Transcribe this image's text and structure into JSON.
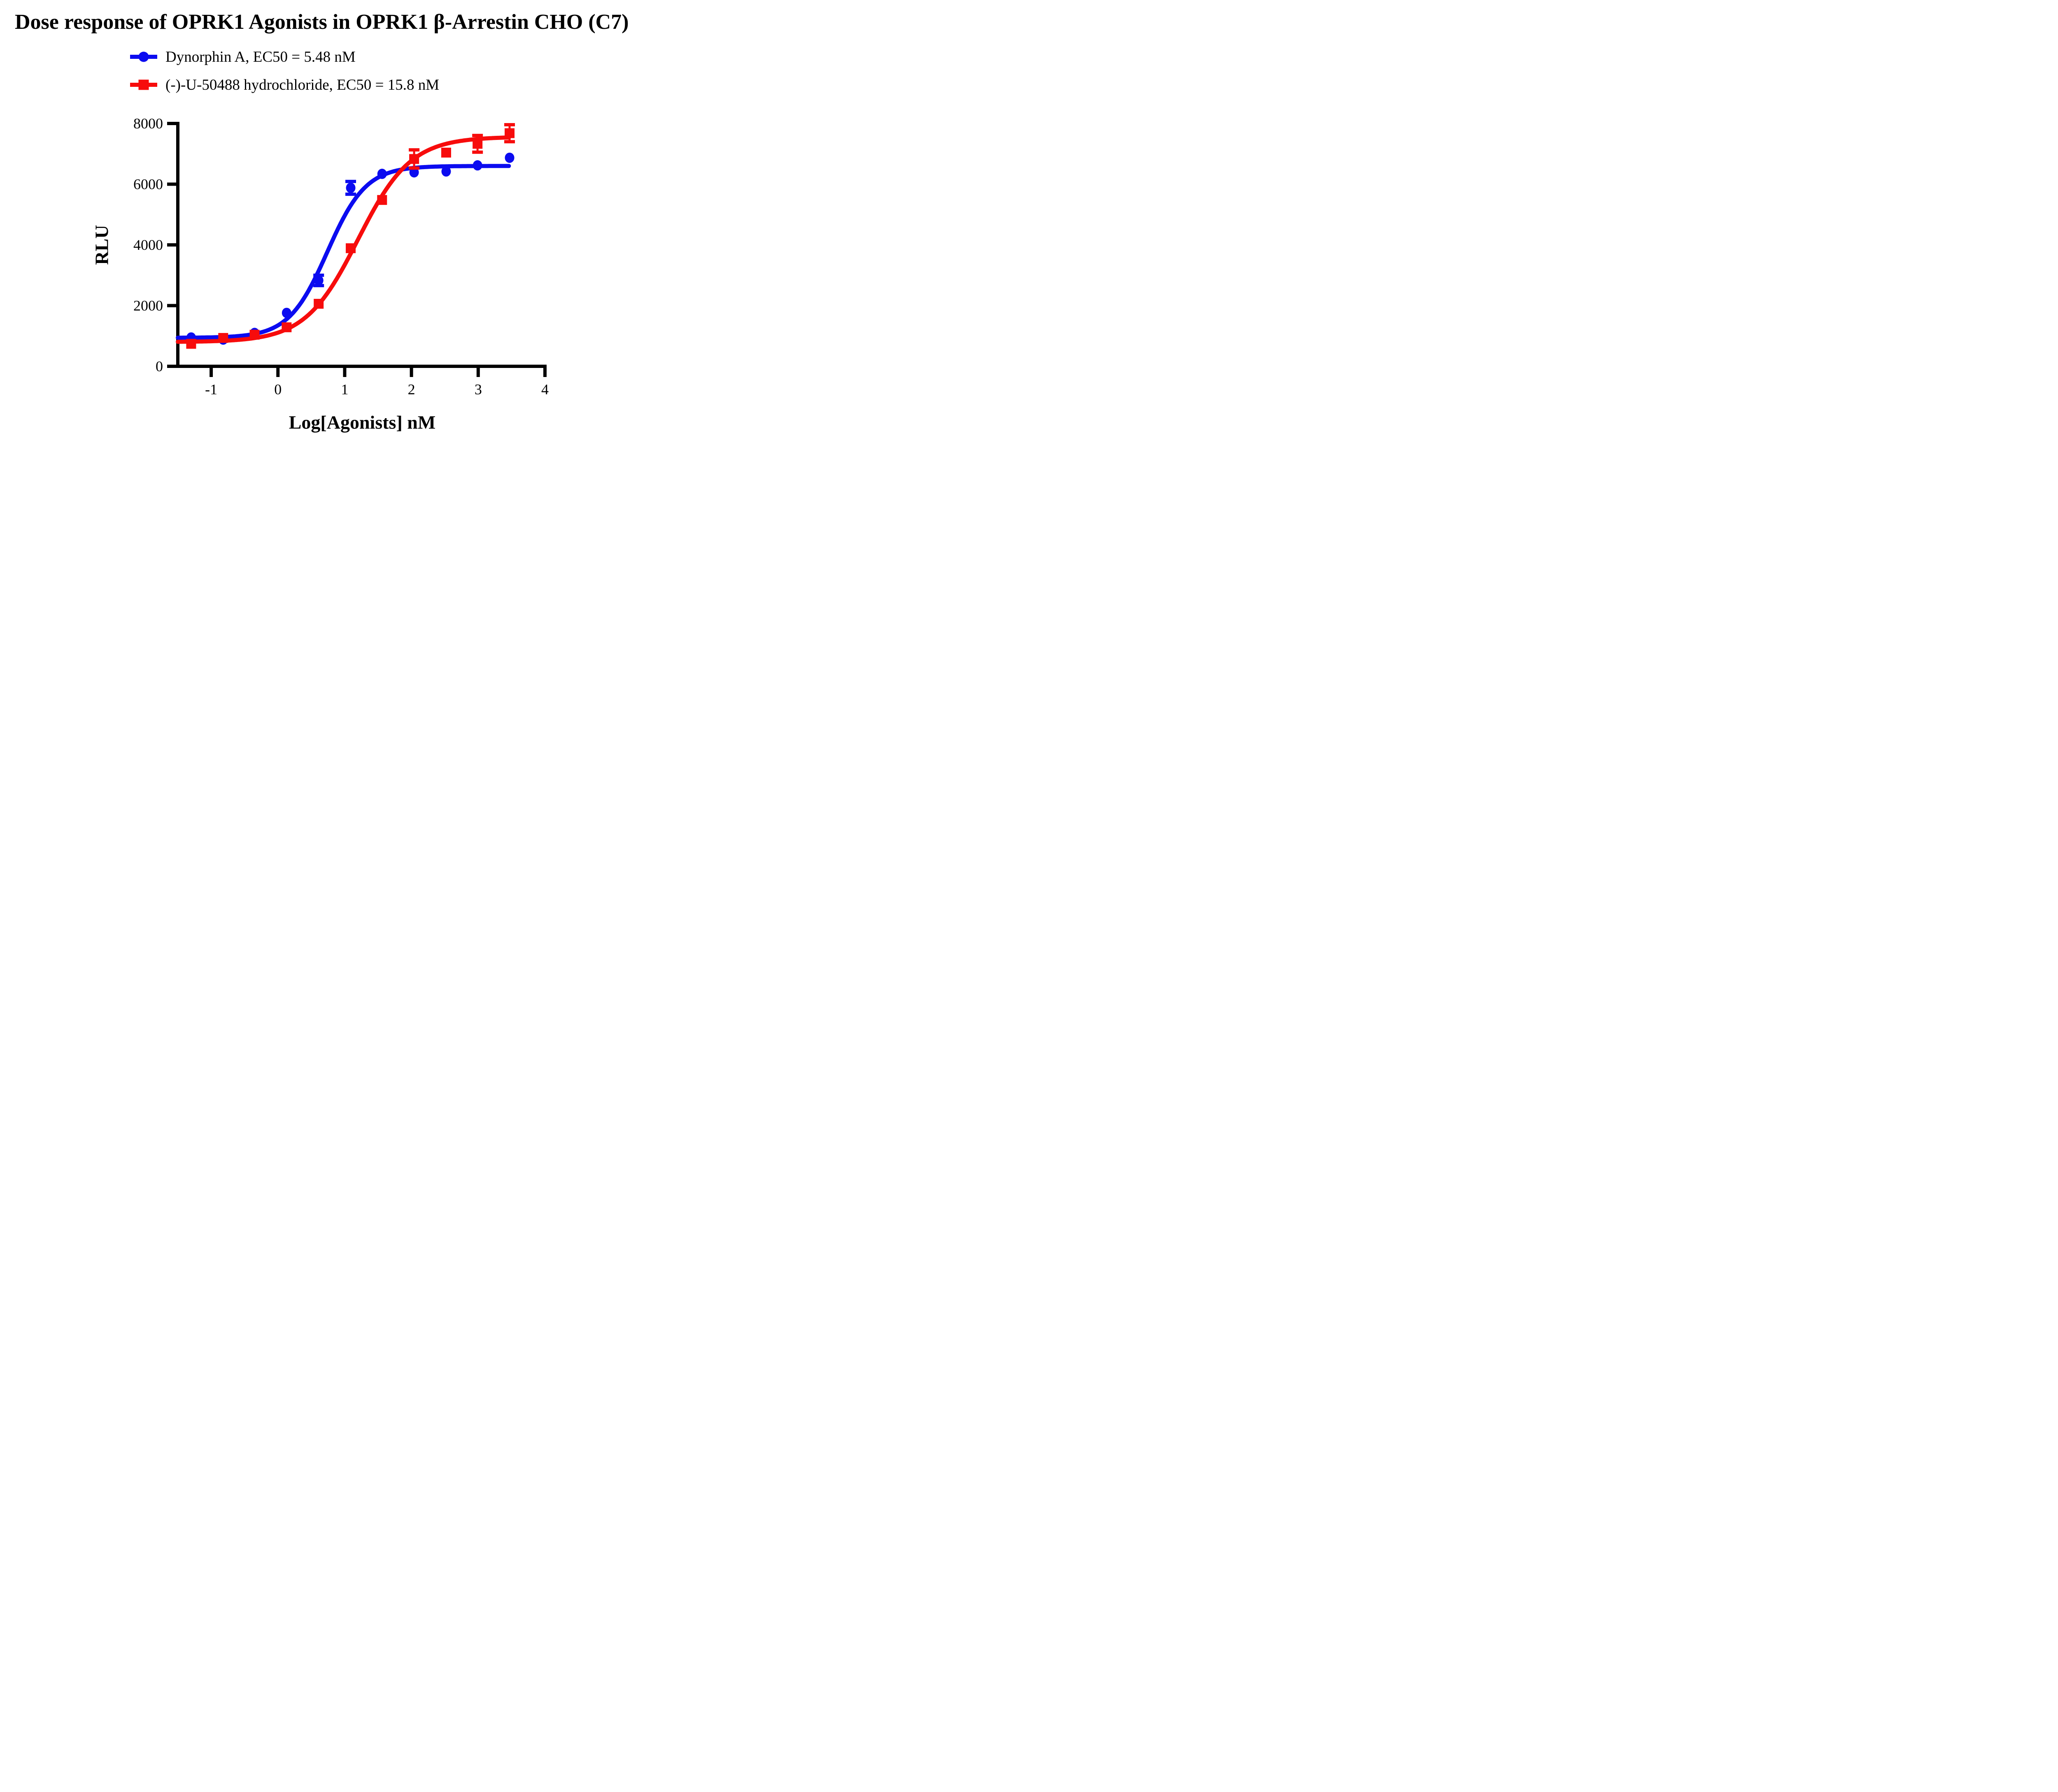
{
  "chart_data": {
    "type": "scatter",
    "title": "Dose response of OPRK1 Agonists in OPRK1 β-Arrestin CHO (C7)",
    "xlabel": "Log[Agonists] nM",
    "ylabel": "RLU",
    "xlim": [
      -1.5,
      4
    ],
    "ylim": [
      0,
      8000
    ],
    "x_ticks": [
      -1,
      0,
      1,
      2,
      3,
      4
    ],
    "y_ticks": [
      0,
      2000,
      4000,
      6000,
      8000
    ],
    "grid": false,
    "legend_position": "top-left",
    "axis_color": "#000000",
    "x": [
      -1.3,
      -0.82,
      -0.35,
      0.13,
      0.61,
      1.09,
      1.56,
      2.04,
      2.52,
      2.99,
      3.47
    ],
    "series": [
      {
        "name": "Dynorphin A, EC50 = 5.48 nM",
        "marker": "circle",
        "color": "#0B0BF0",
        "values": [
          950,
          880,
          1100,
          1760,
          2830,
          5880,
          6340,
          6390,
          6420,
          6620,
          6870
        ],
        "errors": [
          null,
          null,
          null,
          null,
          170,
          210,
          null,
          null,
          null,
          null,
          null
        ],
        "fit": {
          "bottom": 940,
          "top": 6600,
          "logEC50": 0.74,
          "hill": 1.5,
          "x_start": -1.5,
          "x_end": 3.47
        }
      },
      {
        "name": "(-)-U-50488 hydrochloride, EC50 = 15.8 nM",
        "marker": "square",
        "color": "#F70C0C",
        "values": [
          740,
          935,
          1040,
          1285,
          2060,
          3890,
          5480,
          6830,
          7040,
          7330,
          7680
        ],
        "errors": [
          null,
          null,
          null,
          null,
          null,
          null,
          null,
          300,
          null,
          275,
          280
        ],
        "fit": {
          "bottom": 800,
          "top": 7560,
          "logEC50": 1.2,
          "hill": 1.1,
          "x_start": -1.5,
          "x_end": 3.47
        }
      }
    ]
  }
}
